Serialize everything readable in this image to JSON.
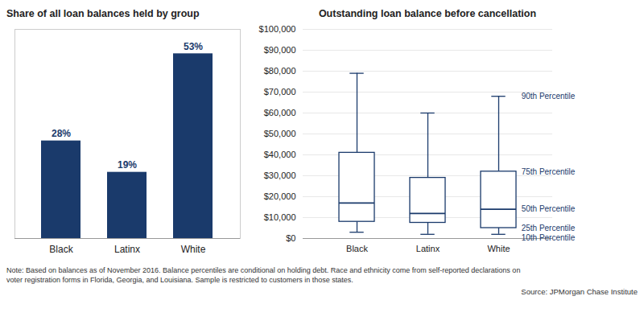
{
  "chart_data": [
    {
      "type": "bar",
      "title": "Share of all loan balances held by group",
      "categories": [
        "Black",
        "Latinx",
        "White"
      ],
      "values": [
        28,
        19,
        53
      ],
      "value_labels": [
        "28%",
        "19%",
        "53%"
      ],
      "data_labels": true,
      "color": "#1a3a6b",
      "ylim": [
        0,
        60
      ],
      "tick_labels": "x",
      "grid": false
    },
    {
      "type": "box",
      "title": "Outstanding loan balance before cancellation",
      "categories": [
        "Black",
        "Latinx",
        "White"
      ],
      "p10": [
        3000,
        2000,
        2000
      ],
      "p25": [
        8000,
        7500,
        5000
      ],
      "p50": [
        17000,
        12000,
        14000
      ],
      "p75": [
        41000,
        29000,
        32000
      ],
      "p90": [
        79000,
        60000,
        68000
      ],
      "color": "#1a3a6b",
      "ylim": [
        0,
        100000
      ],
      "yticks": [
        {
          "value": 0,
          "label": "$0"
        },
        {
          "value": 10000,
          "label": "$10,000"
        },
        {
          "value": 20000,
          "label": "$20,000"
        },
        {
          "value": 30000,
          "label": "$30,000"
        },
        {
          "value": 40000,
          "label": "$40,000"
        },
        {
          "value": 50000,
          "label": "$50,000"
        },
        {
          "value": 60000,
          "label": "$60,000"
        },
        {
          "value": 70000,
          "label": "$70,000"
        },
        {
          "value": 80000,
          "label": "$80,000"
        },
        {
          "value": 90000,
          "label": "$90,000"
        },
        {
          "value": 100000,
          "label": "$100,000"
        }
      ],
      "grid": true,
      "annotations": [
        {
          "text": "90th Percentile",
          "category": "White",
          "y": 68000
        },
        {
          "text": "75th Percentile",
          "category": "White",
          "y": 32000
        },
        {
          "text": "50th Percentile",
          "category": "White",
          "y": 14000
        },
        {
          "text": "25th Percentile",
          "category": "White",
          "y": 5000
        },
        {
          "text": "10th Percentile",
          "category": "White",
          "y": 2000
        }
      ]
    }
  ],
  "notes": [
    "Note: Based on balances as of November 2016. Balance percentiles are conditional on holding debt. Race and ethnicity come from self-reported declarations on",
    "voter registration forms in Florida, Georgia, and Louisiana. Sample is restricted to customers in those states."
  ],
  "source": "Source: JPMorgan Chase Institute"
}
